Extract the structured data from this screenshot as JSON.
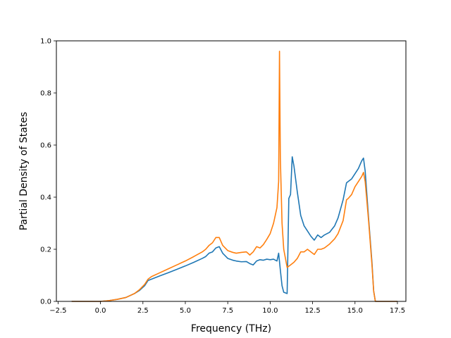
{
  "chart_data": {
    "type": "line",
    "title": "",
    "xlabel": "Frequency (THz)",
    "ylabel": "Partial Density of States",
    "xlim": [
      -2.6,
      18.0
    ],
    "ylim": [
      0.0,
      1.0
    ],
    "grid": false,
    "legend": "none",
    "x_ticks": [
      -2.5,
      0.0,
      2.5,
      5.0,
      7.5,
      10.0,
      12.5,
      15.0,
      17.5
    ],
    "x_tick_labels": [
      "−2.5",
      "0.0",
      "2.5",
      "5.0",
      "7.5",
      "10.0",
      "12.5",
      "15.0",
      "17.5"
    ],
    "y_ticks": [
      0.0,
      0.2,
      0.4,
      0.6,
      0.8,
      1.0
    ],
    "y_tick_labels": [
      "0.0",
      "0.2",
      "0.4",
      "0.6",
      "0.8",
      "1.0"
    ],
    "series": [
      {
        "color": "#1f77b4",
        "x": [
          -1.7,
          0.0,
          0.5,
          1.0,
          1.5,
          2.0,
          2.3,
          2.6,
          2.8,
          3.0,
          3.5,
          4.0,
          4.5,
          5.0,
          5.5,
          6.0,
          6.2,
          6.4,
          6.6,
          6.8,
          7.0,
          7.2,
          7.5,
          7.8,
          8.0,
          8.3,
          8.6,
          8.8,
          9.0,
          9.2,
          9.4,
          9.6,
          9.8,
          10.0,
          10.2,
          10.4,
          10.5,
          10.6,
          10.7,
          10.8,
          11.0,
          11.1,
          11.2,
          11.3,
          11.4,
          11.6,
          11.8,
          12.0,
          12.2,
          12.4,
          12.6,
          12.8,
          13.0,
          13.2,
          13.5,
          13.8,
          14.0,
          14.3,
          14.5,
          14.6,
          14.8,
          15.0,
          15.2,
          15.4,
          15.5,
          15.6,
          15.8,
          16.0,
          16.1,
          16.2,
          17.5
        ],
        "y": [
          0.0,
          0.0,
          0.003,
          0.008,
          0.015,
          0.03,
          0.042,
          0.06,
          0.08,
          0.085,
          0.098,
          0.11,
          0.123,
          0.136,
          0.15,
          0.165,
          0.172,
          0.185,
          0.19,
          0.205,
          0.21,
          0.185,
          0.165,
          0.158,
          0.155,
          0.152,
          0.153,
          0.145,
          0.14,
          0.155,
          0.16,
          0.158,
          0.162,
          0.16,
          0.162,
          0.155,
          0.185,
          0.12,
          0.06,
          0.035,
          0.03,
          0.395,
          0.41,
          0.555,
          0.52,
          0.42,
          0.33,
          0.29,
          0.27,
          0.25,
          0.235,
          0.255,
          0.245,
          0.255,
          0.265,
          0.29,
          0.32,
          0.39,
          0.455,
          0.46,
          0.47,
          0.49,
          0.51,
          0.54,
          0.55,
          0.5,
          0.32,
          0.15,
          0.04,
          0.0,
          0.0
        ]
      },
      {
        "color": "#ff7f0e",
        "x": [
          -1.7,
          0.0,
          0.5,
          1.0,
          1.5,
          2.0,
          2.3,
          2.6,
          2.8,
          3.0,
          3.5,
          4.0,
          4.5,
          5.0,
          5.5,
          6.0,
          6.2,
          6.4,
          6.6,
          6.8,
          7.0,
          7.2,
          7.5,
          7.8,
          8.0,
          8.3,
          8.6,
          8.8,
          9.0,
          9.2,
          9.4,
          9.6,
          9.8,
          10.0,
          10.2,
          10.4,
          10.5,
          10.55,
          10.6,
          10.7,
          10.8,
          11.0,
          11.2,
          11.4,
          11.6,
          11.8,
          12.0,
          12.2,
          12.4,
          12.6,
          12.8,
          13.0,
          13.2,
          13.5,
          13.8,
          14.0,
          14.3,
          14.5,
          14.6,
          14.8,
          15.0,
          15.2,
          15.4,
          15.5,
          15.6,
          15.8,
          16.0,
          16.1,
          16.2,
          17.5
        ],
        "y": [
          0.0,
          0.0,
          0.003,
          0.008,
          0.015,
          0.03,
          0.045,
          0.065,
          0.085,
          0.095,
          0.11,
          0.125,
          0.14,
          0.155,
          0.172,
          0.19,
          0.2,
          0.215,
          0.225,
          0.245,
          0.245,
          0.215,
          0.195,
          0.188,
          0.185,
          0.188,
          0.19,
          0.178,
          0.19,
          0.21,
          0.205,
          0.218,
          0.238,
          0.26,
          0.3,
          0.36,
          0.46,
          0.96,
          0.55,
          0.3,
          0.2,
          0.13,
          0.14,
          0.15,
          0.165,
          0.19,
          0.19,
          0.2,
          0.19,
          0.18,
          0.2,
          0.2,
          0.205,
          0.22,
          0.24,
          0.26,
          0.31,
          0.39,
          0.395,
          0.41,
          0.44,
          0.46,
          0.48,
          0.495,
          0.46,
          0.31,
          0.14,
          0.04,
          0.0,
          0.0
        ]
      }
    ]
  }
}
